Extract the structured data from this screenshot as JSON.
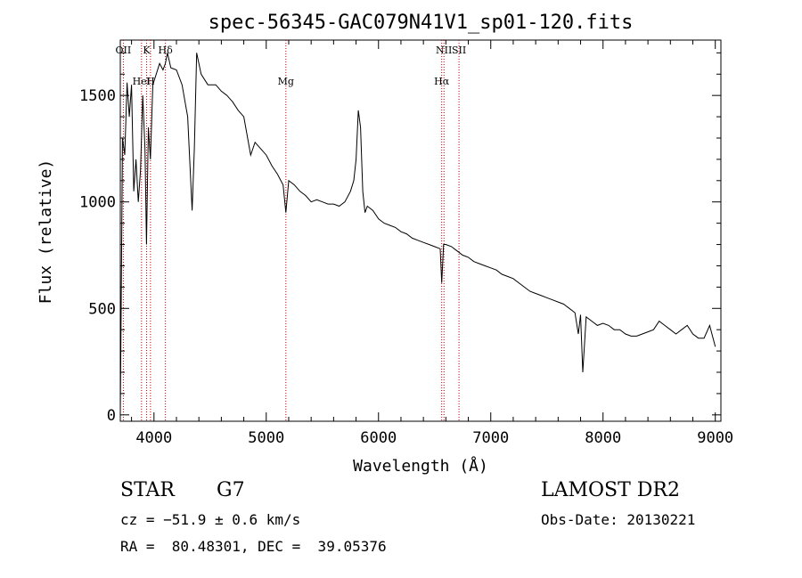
{
  "chart_data": {
    "type": "line",
    "title": "spec-56345-GAC079N41V1_sp01-120.fits",
    "xlabel": "Wavelength (Å)",
    "ylabel": "Flux (relative)",
    "xlim": [
      3700,
      9050
    ],
    "ylim": [
      -30,
      1760
    ],
    "xticks": [
      4000,
      5000,
      6000,
      7000,
      8000,
      9000
    ],
    "xtick_labels": [
      "4000",
      "5000",
      "6000",
      "7000",
      "8000",
      "9000"
    ],
    "yticks": [
      0,
      500,
      1000,
      1500
    ],
    "ytick_labels": [
      "0",
      "500",
      "1000",
      "1500"
    ],
    "grid": false,
    "series": [
      {
        "x": [
          3700,
          3720,
          3740,
          3760,
          3780,
          3800,
          3820,
          3840,
          3860,
          3880,
          3900,
          3920,
          3933,
          3950,
          3968,
          3990,
          4020,
          4050,
          4080,
          4102,
          4120,
          4150,
          4200,
          4250,
          4300,
          4340,
          4360,
          4380,
          4420,
          4480,
          4550,
          4600,
          4650,
          4700,
          4750,
          4800,
          4861,
          4900,
          4950,
          5000,
          5050,
          5100,
          5150,
          5175,
          5200,
          5250,
          5300,
          5350,
          5400,
          5450,
          5500,
          5550,
          5600,
          5650,
          5700,
          5750,
          5780,
          5800,
          5820,
          5840,
          5860,
          5880,
          5900,
          5950,
          6000,
          6050,
          6100,
          6150,
          6200,
          6250,
          6300,
          6350,
          6400,
          6450,
          6500,
          6550,
          6563,
          6580,
          6600,
          6650,
          6700,
          6750,
          6800,
          6850,
          6900,
          6950,
          7000,
          7050,
          7100,
          7150,
          7200,
          7250,
          7300,
          7350,
          7400,
          7450,
          7500,
          7550,
          7600,
          7650,
          7700,
          7750,
          7780,
          7800,
          7820,
          7850,
          7900,
          7950,
          8000,
          8050,
          8100,
          8150,
          8200,
          8250,
          8300,
          8350,
          8400,
          8450,
          8500,
          8550,
          8600,
          8650,
          8700,
          8750,
          8800,
          8850,
          8900,
          8950,
          9000
        ],
        "y": [
          5,
          1300,
          1220,
          1560,
          1400,
          1550,
          1050,
          1200,
          1000,
          1150,
          1500,
          1250,
          800,
          1350,
          1200,
          1550,
          1600,
          1650,
          1620,
          1650,
          1700,
          1630,
          1620,
          1550,
          1400,
          960,
          1250,
          1700,
          1600,
          1550,
          1550,
          1520,
          1500,
          1470,
          1430,
          1400,
          1220,
          1280,
          1250,
          1220,
          1170,
          1130,
          1080,
          950,
          1100,
          1080,
          1050,
          1030,
          1000,
          1010,
          1000,
          990,
          990,
          980,
          1000,
          1050,
          1100,
          1200,
          1430,
          1350,
          1050,
          950,
          980,
          960,
          920,
          900,
          890,
          880,
          860,
          850,
          830,
          820,
          810,
          800,
          790,
          780,
          620,
          800,
          800,
          790,
          770,
          750,
          740,
          720,
          710,
          700,
          690,
          680,
          660,
          650,
          640,
          620,
          600,
          580,
          570,
          560,
          550,
          540,
          530,
          520,
          500,
          480,
          380,
          470,
          200,
          460,
          440,
          420,
          430,
          420,
          400,
          400,
          380,
          370,
          370,
          380,
          390,
          400,
          440,
          420,
          400,
          380,
          400,
          420,
          380,
          360,
          360,
          420,
          320
        ]
      }
    ],
    "line_markers": [
      {
        "label": "OII",
        "x": 3727
      },
      {
        "label": "HeI",
        "x": 3889
      },
      {
        "label": "K",
        "x": 3934
      },
      {
        "label": "H",
        "x": 3969
      },
      {
        "label": "Hδ",
        "x": 4102
      },
      {
        "label": "Mg",
        "x": 5175
      },
      {
        "label": "NII",
        "x": 6583
      },
      {
        "label": "Hα",
        "x": 6563
      },
      {
        "label": "SII",
        "x": 6717
      }
    ],
    "marker_color": "#c00000"
  },
  "info": {
    "class_label": "STAR",
    "subclass": "G7",
    "velocity": "cz = −51.9 ± 0.6 km/s",
    "coords": "RA =  80.48301, DEC =  39.05376",
    "survey": "LAMOST DR2",
    "obs_date": "Obs-Date: 20130221"
  }
}
